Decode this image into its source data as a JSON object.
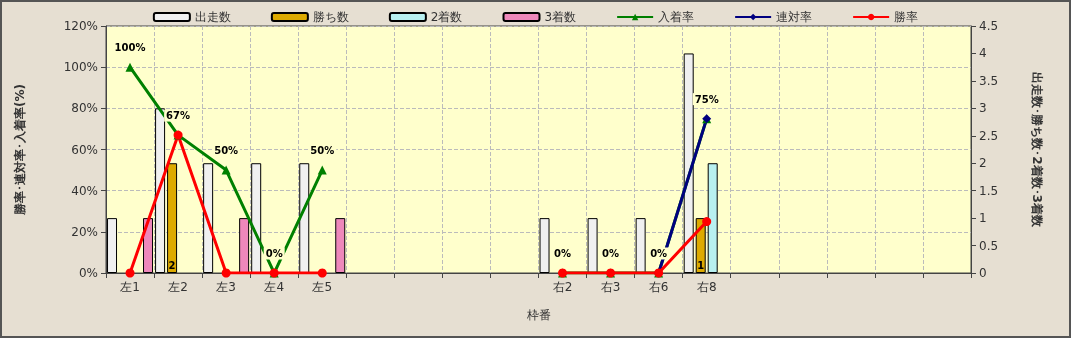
{
  "chart_data": {
    "type": "bar",
    "xlabel": "枠番",
    "ylabel": "勝率･連対率･入着率(%)",
    "y2label": "出走数･勝ち数･2着数･3着数",
    "categories": [
      "左1",
      "左2",
      "左3",
      "左4",
      "左5",
      null,
      null,
      null,
      null,
      "右2",
      "右3",
      "右6",
      "右8",
      null,
      null,
      null,
      null,
      null
    ],
    "series": [
      {
        "name": "出走数",
        "color": "#f0f0f0",
        "axis": "y2",
        "values": [
          1,
          3,
          2,
          2,
          2,
          null,
          null,
          null,
          null,
          1,
          1,
          1,
          4,
          null,
          null,
          null,
          null,
          null
        ]
      },
      {
        "name": "勝ち数",
        "color": "#ddaa00",
        "axis": "y2",
        "values": [
          null,
          2,
          null,
          null,
          null,
          null,
          null,
          null,
          null,
          null,
          null,
          null,
          1,
          null,
          null,
          null,
          null,
          null
        ],
        "value_labels": [
          null,
          "2",
          null,
          null,
          null,
          null,
          null,
          null,
          null,
          null,
          null,
          null,
          "1",
          null,
          null,
          null,
          null,
          null
        ]
      },
      {
        "name": "2着数",
        "color": "#b8f0f0",
        "axis": "y2",
        "values": [
          null,
          null,
          null,
          null,
          null,
          null,
          null,
          null,
          null,
          null,
          null,
          null,
          2,
          null,
          null,
          null,
          null,
          null
        ]
      },
      {
        "name": "3着数",
        "color": "#ee88bb",
        "axis": "y2",
        "values": [
          1,
          null,
          1,
          null,
          1,
          null,
          null,
          null,
          null,
          null,
          null,
          null,
          null,
          null,
          null,
          null,
          null,
          null
        ]
      },
      {
        "name": "入着率",
        "type": "line",
        "color": "#008000",
        "marker": "triangle",
        "values": [
          100,
          67,
          50,
          0,
          50,
          null,
          null,
          null,
          null,
          0,
          0,
          0,
          75,
          null,
          null,
          null,
          null,
          null
        ],
        "value_labels": [
          "100%",
          "67%",
          "50%",
          "0%",
          "50%",
          null,
          null,
          null,
          null,
          "0%",
          "0%",
          "0%",
          "75%",
          null,
          null,
          null,
          null,
          null
        ]
      },
      {
        "name": "連対率",
        "type": "line",
        "color": "#000080",
        "marker": "diamond",
        "values": [
          null,
          null,
          null,
          null,
          null,
          null,
          null,
          null,
          null,
          null,
          null,
          0,
          75,
          null,
          null,
          null,
          null,
          null
        ]
      },
      {
        "name": "勝率",
        "type": "line",
        "color": "#ff0000",
        "marker": "circle",
        "values": [
          0,
          67,
          0,
          0,
          0,
          null,
          null,
          null,
          null,
          0,
          0,
          0,
          25,
          null,
          null,
          null,
          null,
          null
        ]
      }
    ],
    "ylim": [
      0,
      120
    ],
    "yticks": [
      {
        "value": 0,
        "label": "0%"
      },
      {
        "value": 20,
        "label": "20%"
      },
      {
        "value": 40,
        "label": "40%"
      },
      {
        "value": 60,
        "label": "60%"
      },
      {
        "value": 80,
        "label": "80%"
      },
      {
        "value": 100,
        "label": "100%"
      },
      {
        "value": 120,
        "label": "120%"
      }
    ],
    "y2lim": [
      0,
      4.5
    ],
    "y2ticks": [
      0,
      0.5,
      1,
      1.5,
      2,
      2.5,
      3,
      3.5,
      4,
      4.5
    ],
    "grid": true,
    "legend": "top"
  }
}
